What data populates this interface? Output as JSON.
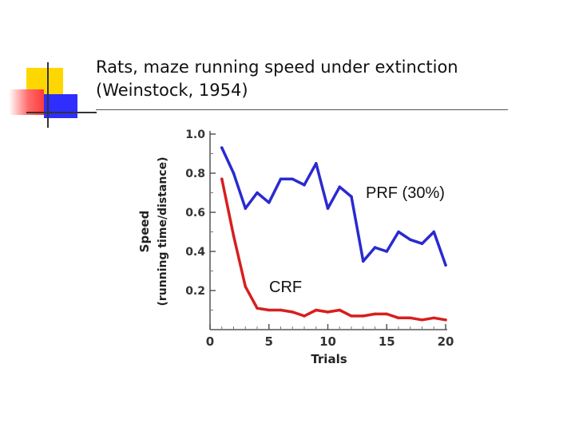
{
  "slide": {
    "title_line1": "Rats, maze running speed under extinction",
    "title_line2": "(Weinstock, 1954)"
  },
  "colors": {
    "deco_yellow": "#FFD700",
    "deco_red": "#FF6B6B",
    "deco_blue": "#2E2EFF",
    "prf_series": "#2A2AD0",
    "crf_series": "#D81E1E"
  },
  "chart_data": {
    "type": "line",
    "title": "",
    "xlabel": "Trials",
    "ylabel": "Speed",
    "ylabel_sub": "(running time/distance)",
    "xlim": [
      0,
      20
    ],
    "ylim": [
      0,
      1.0
    ],
    "xticks": [
      0,
      5,
      10,
      15,
      20
    ],
    "xtick_labels": [
      "0",
      "5",
      "10",
      "15",
      "20"
    ],
    "yticks": [
      0.2,
      0.4,
      0.6,
      0.8,
      1.0
    ],
    "ytick_labels": [
      "0.2",
      "0.4",
      "0.6",
      "0.8",
      "1.0"
    ],
    "grid": false,
    "series": [
      {
        "name": "PRF (30%)",
        "x": [
          1,
          2,
          3,
          4,
          5,
          6,
          7,
          8,
          9,
          10,
          11,
          12,
          13,
          14,
          15,
          16,
          17,
          18,
          19,
          20
        ],
        "values": [
          0.93,
          0.8,
          0.62,
          0.7,
          0.65,
          0.77,
          0.77,
          0.74,
          0.85,
          0.62,
          0.73,
          0.68,
          0.35,
          0.42,
          0.4,
          0.5,
          0.46,
          0.44,
          0.5,
          0.33
        ]
      },
      {
        "name": "CRF",
        "x": [
          1,
          2,
          3,
          4,
          5,
          6,
          7,
          8,
          9,
          10,
          11,
          12,
          13,
          14,
          15,
          16,
          17,
          18,
          19,
          20
        ],
        "values": [
          0.77,
          0.48,
          0.22,
          0.11,
          0.1,
          0.1,
          0.09,
          0.07,
          0.1,
          0.09,
          0.1,
          0.07,
          0.07,
          0.08,
          0.08,
          0.06,
          0.06,
          0.05,
          0.06,
          0.05
        ]
      }
    ],
    "annotations": [
      {
        "text": "PRF (30%)",
        "series": "PRF (30%)"
      },
      {
        "text": "CRF",
        "series": "CRF"
      }
    ]
  }
}
